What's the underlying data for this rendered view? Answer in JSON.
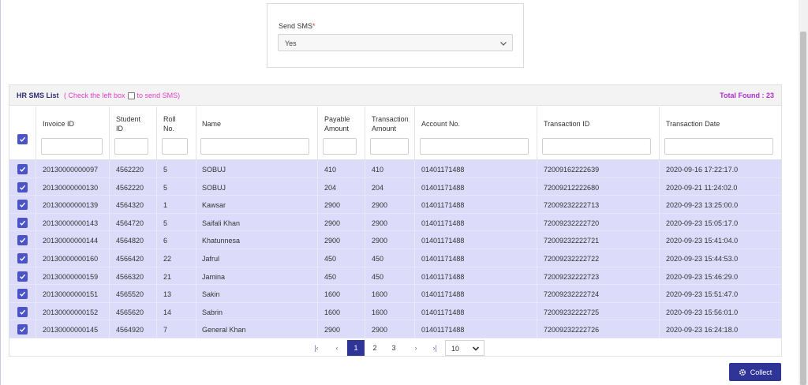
{
  "sms_filter": {
    "label": "Send SMS",
    "required_mark": "*",
    "value": "Yes"
  },
  "list": {
    "title": "HR SMS List",
    "hint_before": "( Check the left box",
    "hint_after": "to send SMS)",
    "total_found": "Total Found : 23"
  },
  "columns": [
    {
      "key": "invoice_id",
      "lines": [
        "Invoice ID"
      ]
    },
    {
      "key": "student_id",
      "lines": [
        "Student",
        "ID"
      ]
    },
    {
      "key": "roll_no",
      "lines": [
        "Roll",
        "No."
      ]
    },
    {
      "key": "name",
      "lines": [
        "Name"
      ]
    },
    {
      "key": "payable_amount",
      "lines": [
        "Payable",
        "Amount"
      ]
    },
    {
      "key": "transaction_amount",
      "lines": [
        "Transaction",
        "Amount"
      ]
    },
    {
      "key": "account_no",
      "lines": [
        "Account No."
      ]
    },
    {
      "key": "transaction_id",
      "lines": [
        "Transaction ID"
      ]
    },
    {
      "key": "transaction_date",
      "lines": [
        "Transaction Date"
      ]
    }
  ],
  "rows": [
    {
      "checked": true,
      "cells": [
        "20130000000097",
        "4562220",
        "5",
        "SOBUJ",
        "410",
        "410",
        "01401171488",
        "72009162222639",
        "2020-09-16 17:22:17.0"
      ]
    },
    {
      "checked": true,
      "cells": [
        "20130000000130",
        "4562220",
        "5",
        "SOBUJ",
        "204",
        "204",
        "01401171488",
        "72009212222680",
        "2020-09-21 11:24:02.0"
      ]
    },
    {
      "checked": true,
      "cells": [
        "20130000000139",
        "4564320",
        "1",
        "Kawsar",
        "2900",
        "2900",
        "01401171488",
        "72009232222713",
        "2020-09-23 13:25:00.0"
      ]
    },
    {
      "checked": true,
      "cells": [
        "20130000000143",
        "4564720",
        "5",
        "Saifali Khan",
        "2900",
        "2900",
        "01401171488",
        "72009232222720",
        "2020-09-23 15:05:17.0"
      ]
    },
    {
      "checked": true,
      "cells": [
        "20130000000144",
        "4564820",
        "6",
        "Khatunnesa",
        "2900",
        "2900",
        "01401171488",
        "72009232222721",
        "2020-09-23 15:41:04.0"
      ]
    },
    {
      "checked": true,
      "cells": [
        "20130000000160",
        "4566420",
        "22",
        "Jafrul",
        "450",
        "450",
        "01401171488",
        "72009232222722",
        "2020-09-23 15:44:53.0"
      ]
    },
    {
      "checked": true,
      "cells": [
        "20130000000159",
        "4566320",
        "21",
        "Jamina",
        "450",
        "450",
        "01401171488",
        "72009232222723",
        "2020-09-23 15:46:29.0"
      ]
    },
    {
      "checked": true,
      "cells": [
        "20130000000151",
        "4565520",
        "13",
        "Sakin",
        "1600",
        "1600",
        "01401171488",
        "72009232222724",
        "2020-09-23 15:51:47.0"
      ]
    },
    {
      "checked": true,
      "cells": [
        "20130000000152",
        "4565620",
        "14",
        "Sabrin",
        "1600",
        "1600",
        "01401171488",
        "72009232222725",
        "2020-09-23 15:56:01.0"
      ]
    },
    {
      "checked": true,
      "cells": [
        "20130000000145",
        "4564920",
        "7",
        "General Khan",
        "2900",
        "2900",
        "01401171488",
        "72009232222726",
        "2020-09-23 16:24:18.0"
      ]
    }
  ],
  "pagination": {
    "pages": [
      "1",
      "2",
      "3"
    ],
    "current_page": "1",
    "page_size": "10"
  },
  "actions": {
    "collect_label": "Collect"
  },
  "colors": {
    "accent": "#2f3596",
    "checkbox": "#4b53c8",
    "row_bg": "#dcdcfa",
    "hint": "#e040c8",
    "total": "#b32fd0"
  },
  "icons": {
    "select_chevron": "chevron-down-icon",
    "checkbox": "check-icon",
    "collect": "gear-icon",
    "pager": [
      "first-page-icon",
      "prev-page-icon",
      "next-page-icon",
      "last-page-icon"
    ]
  }
}
